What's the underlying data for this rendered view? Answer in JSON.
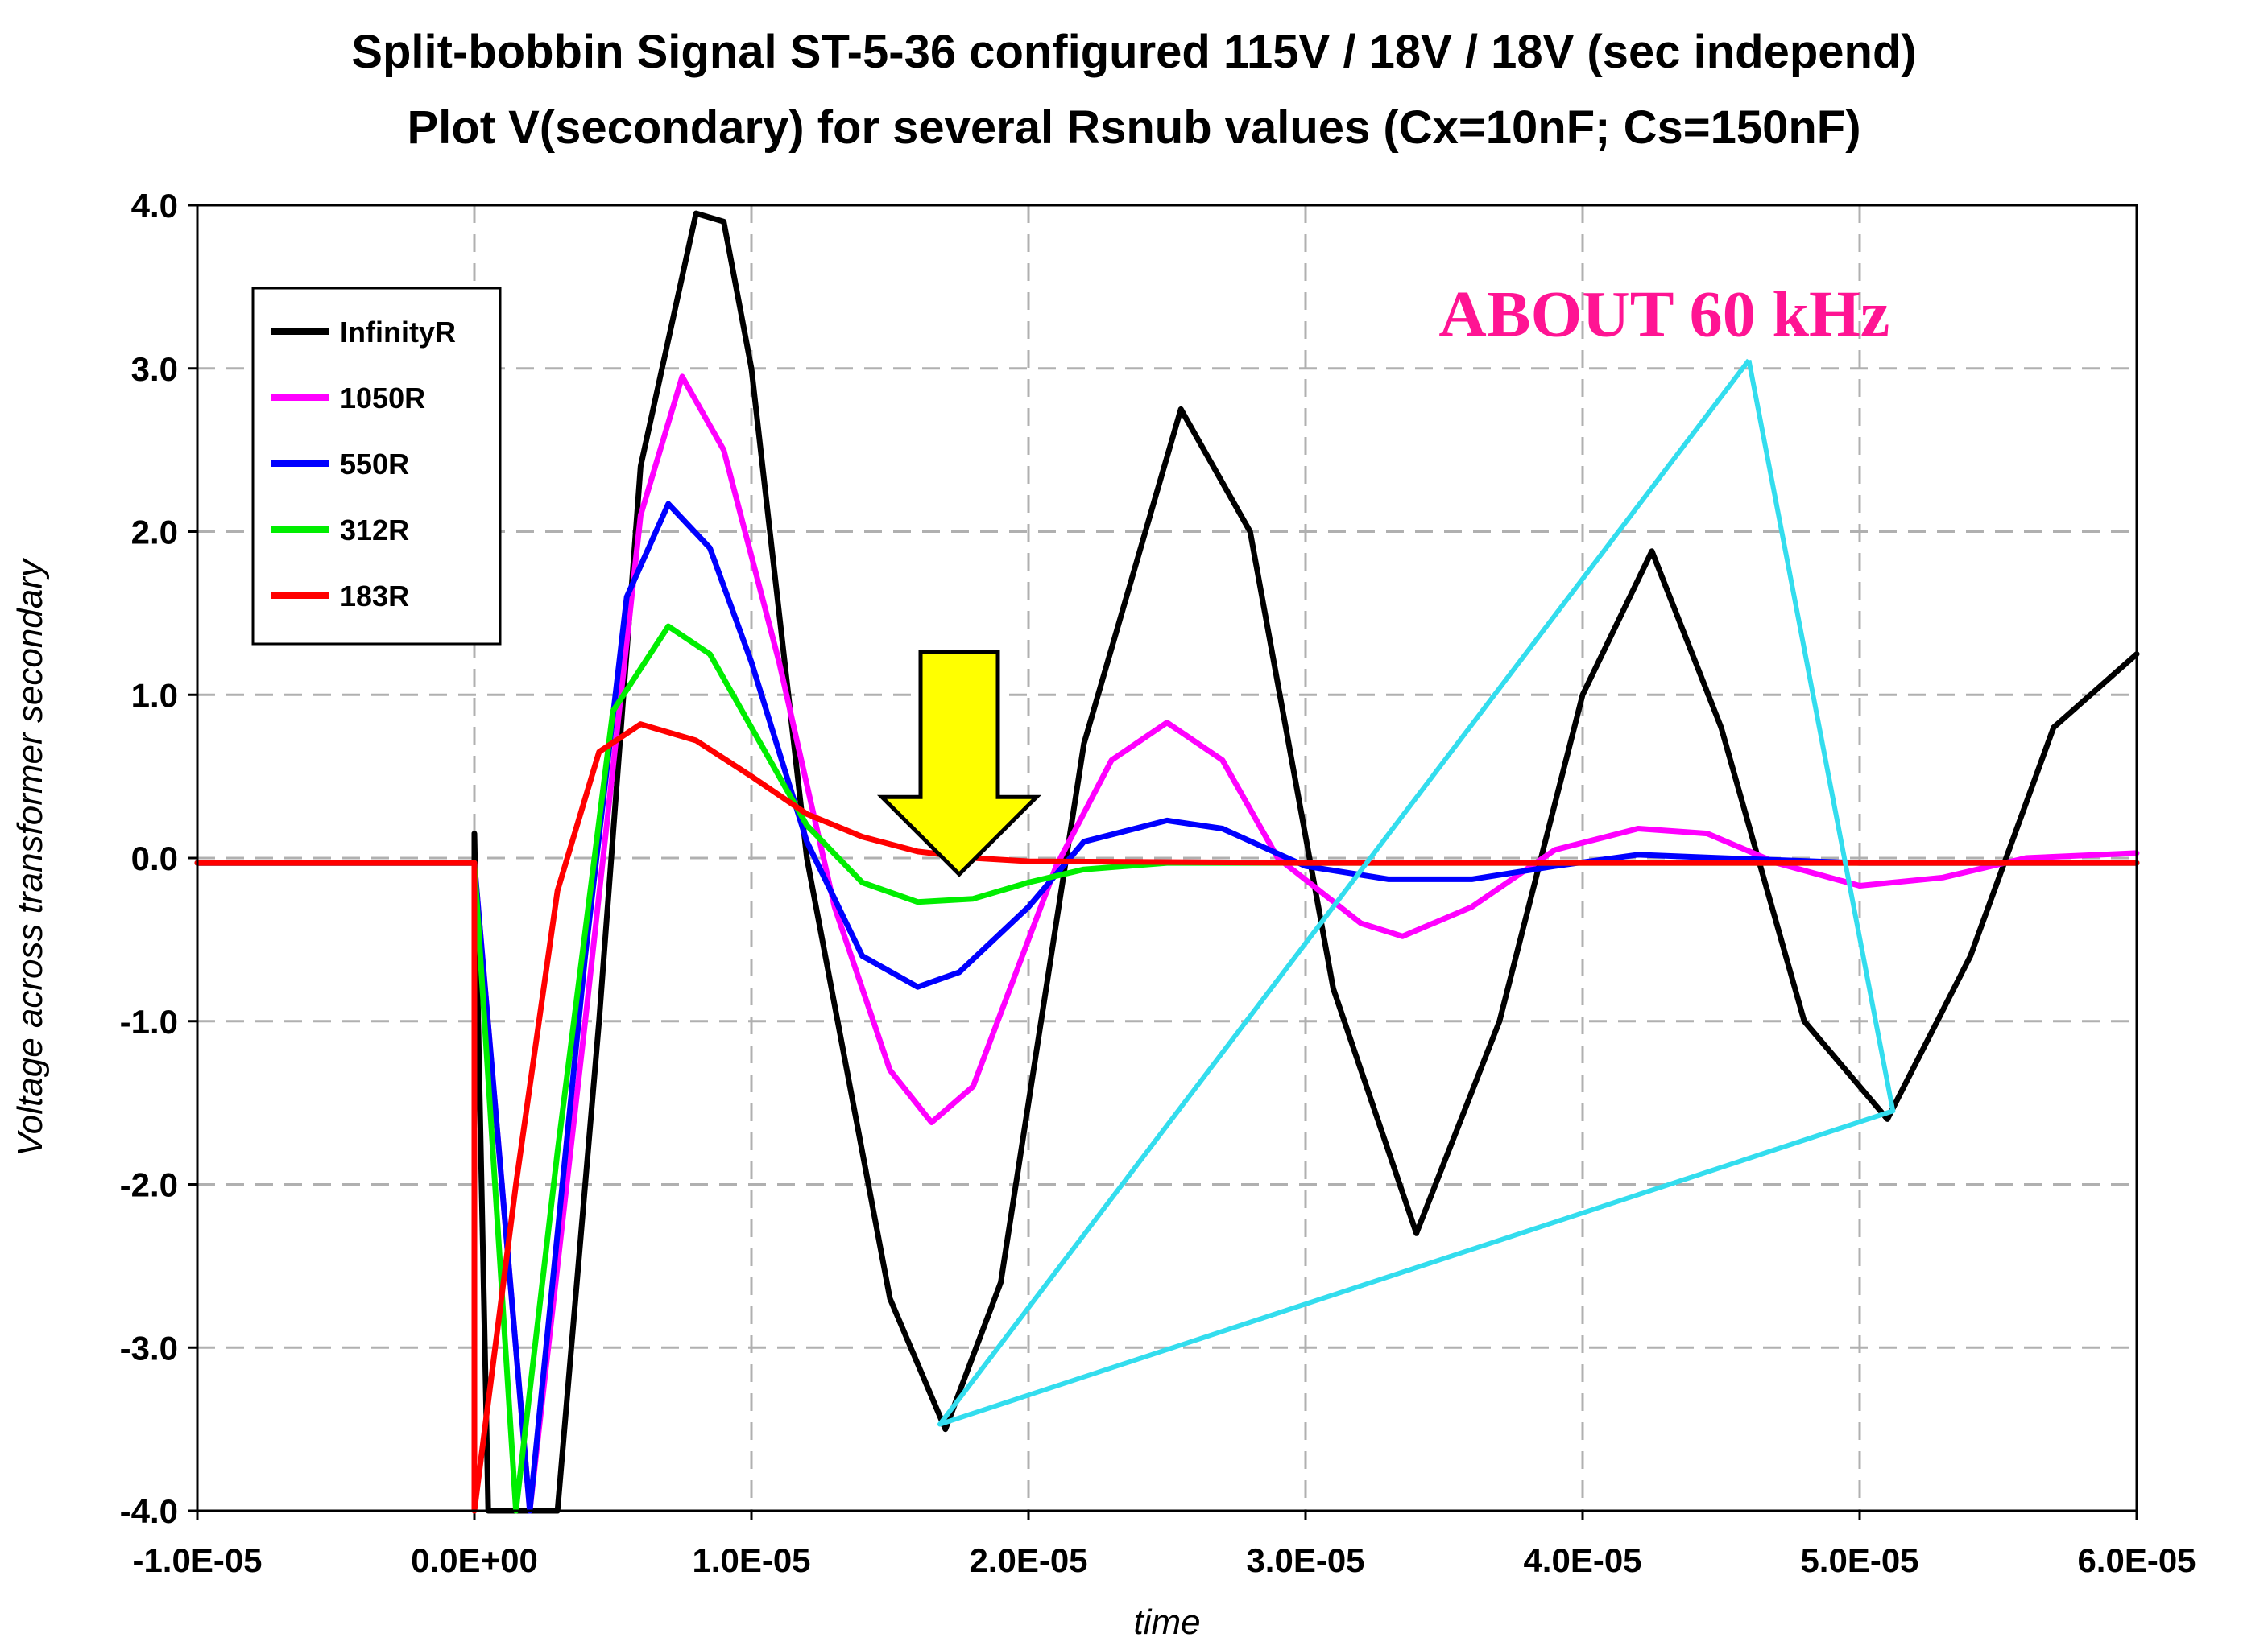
{
  "chart_data": {
    "type": "line",
    "title_lines": [
      "Split-bobbin Signal ST-5-36 configured 115V / 18V / 18V (sec independ)",
      "Plot V(secondary) for several Rsnub values (Cx=10nF; Cs=150nF)"
    ],
    "xlabel": "time",
    "ylabel": "Voltage across transformer secondary",
    "xlim": [
      -1e-05,
      6e-05
    ],
    "ylim": [
      -4.0,
      4.0
    ],
    "x_tick_labels": [
      "-1.0E-05",
      "0.0E+00",
      "1.0E-05",
      "2.0E-05",
      "3.0E-05",
      "4.0E-05",
      "5.0E-05",
      "6.0E-05"
    ],
    "x_ticks": [
      -1e-05,
      0.0,
      1e-05,
      2e-05,
      3e-05,
      4e-05,
      5e-05,
      6e-05
    ],
    "y_tick_labels": [
      "4.0",
      "3.0",
      "2.0",
      "1.0",
      "0.0",
      "-1.0",
      "-2.0",
      "-3.0",
      "-4.0"
    ],
    "y_ticks": [
      4.0,
      3.0,
      2.0,
      1.0,
      0.0,
      -1.0,
      -2.0,
      -3.0,
      -4.0
    ],
    "grid": true,
    "legend_position": "top-left",
    "series": [
      {
        "name": "InfinityR",
        "color": "#000000",
        "x": [
          -1e-05,
          -1e-09,
          0.0,
          5e-07,
          3e-06,
          4.5e-06,
          6e-06,
          8e-06,
          9e-06,
          1e-05,
          1.2e-05,
          1.5e-05,
          1.7e-05,
          1.9e-05,
          2.2e-05,
          2.55e-05,
          2.8e-05,
          3.1e-05,
          3.4e-05,
          3.7e-05,
          4e-05,
          4.25e-05,
          4.5e-05,
          4.8e-05,
          5.1e-05,
          5.4e-05,
          5.7e-05,
          6e-05
        ],
        "y": [
          -0.03,
          -0.03,
          0.15,
          -4.5,
          -4.3,
          -1.0,
          2.4,
          3.95,
          3.9,
          3.0,
          0.0,
          -2.7,
          -3.5,
          -2.6,
          0.7,
          2.75,
          2.0,
          -0.8,
          -2.3,
          -1.0,
          1.0,
          1.88,
          0.8,
          -1.0,
          -1.6,
          -0.6,
          0.8,
          1.25
        ]
      },
      {
        "name": "1050R",
        "color": "#ff00ff",
        "x": [
          -1e-05,
          0.0,
          2e-06,
          4e-06,
          6e-06,
          7.5e-06,
          9e-06,
          1.1e-05,
          1.3e-05,
          1.5e-05,
          1.65e-05,
          1.8e-05,
          2.1e-05,
          2.3e-05,
          2.5e-05,
          2.7e-05,
          2.9e-05,
          3.2e-05,
          3.35e-05,
          3.6e-05,
          3.9e-05,
          4.2e-05,
          4.45e-05,
          4.7e-05,
          5e-05,
          5.3e-05,
          5.6e-05,
          6e-05
        ],
        "y": [
          -0.03,
          -0.03,
          -4.5,
          -1.0,
          2.1,
          2.95,
          2.5,
          1.2,
          -0.3,
          -1.3,
          -1.62,
          -1.4,
          -0.05,
          0.6,
          0.83,
          0.6,
          0.0,
          -0.4,
          -0.48,
          -0.3,
          0.05,
          0.18,
          0.15,
          -0.03,
          -0.17,
          -0.12,
          0.0,
          0.03
        ]
      },
      {
        "name": "550R",
        "color": "#0000ff",
        "x": [
          -1e-05,
          0.0,
          2e-06,
          4e-06,
          5.5e-06,
          7e-06,
          8.5e-06,
          1e-05,
          1.2e-05,
          1.4e-05,
          1.6e-05,
          1.75e-05,
          2e-05,
          2.2e-05,
          2.5e-05,
          2.7e-05,
          3e-05,
          3.3e-05,
          3.6e-05,
          3.9e-05,
          4.2e-05,
          4.5e-05,
          5e-05,
          5.5e-05,
          6e-05
        ],
        "y": [
          -0.03,
          -0.03,
          -4.5,
          -0.6,
          1.6,
          2.17,
          1.9,
          1.2,
          0.1,
          -0.6,
          -0.79,
          -0.7,
          -0.3,
          0.1,
          0.23,
          0.18,
          -0.05,
          -0.13,
          -0.13,
          -0.05,
          0.02,
          0.0,
          -0.03,
          -0.03,
          -0.03
        ]
      },
      {
        "name": "312R",
        "color": "#00ee00",
        "x": [
          -1e-05,
          0.0,
          1.5e-06,
          3e-06,
          5e-06,
          7e-06,
          8.5e-06,
          1e-05,
          1.2e-05,
          1.4e-05,
          1.6e-05,
          1.8e-05,
          2e-05,
          2.2e-05,
          2.5e-05,
          3e-05,
          4e-05,
          5e-05,
          6e-05
        ],
        "y": [
          -0.03,
          -0.03,
          -4.5,
          -1.8,
          0.9,
          1.42,
          1.25,
          0.8,
          0.2,
          -0.15,
          -0.27,
          -0.25,
          -0.15,
          -0.07,
          -0.03,
          -0.03,
          -0.03,
          -0.03,
          -0.03
        ]
      },
      {
        "name": "183R",
        "color": "#ff0000",
        "x": [
          -1e-05,
          0.0,
          1e-09,
          1.5e-06,
          3e-06,
          4.5e-06,
          6e-06,
          8e-06,
          1e-05,
          1.2e-05,
          1.4e-05,
          1.6e-05,
          1.8e-05,
          2e-05,
          3e-05,
          4e-05,
          5e-05,
          6e-05
        ],
        "y": [
          -0.03,
          -0.03,
          -4.5,
          -2.0,
          -0.2,
          0.65,
          0.82,
          0.72,
          0.5,
          0.27,
          0.13,
          0.04,
          0.0,
          -0.02,
          -0.03,
          -0.03,
          -0.03,
          -0.03
        ]
      }
    ],
    "annotations": {
      "frequency_text": "ABOUT  60 kHz",
      "frequency_color": "#ff1493",
      "leader_color": "#33ddee",
      "leader_anchor": {
        "x": 4.6e-05,
        "y": 3.05
      },
      "leader_targets": [
        {
          "x": 1.68e-05,
          "y": -3.47
        },
        {
          "x": 5.12e-05,
          "y": -1.55
        }
      ],
      "arrow_color": "#ffff00",
      "arrow_tip": {
        "x": 1.75e-05,
        "y": -0.1
      }
    }
  }
}
